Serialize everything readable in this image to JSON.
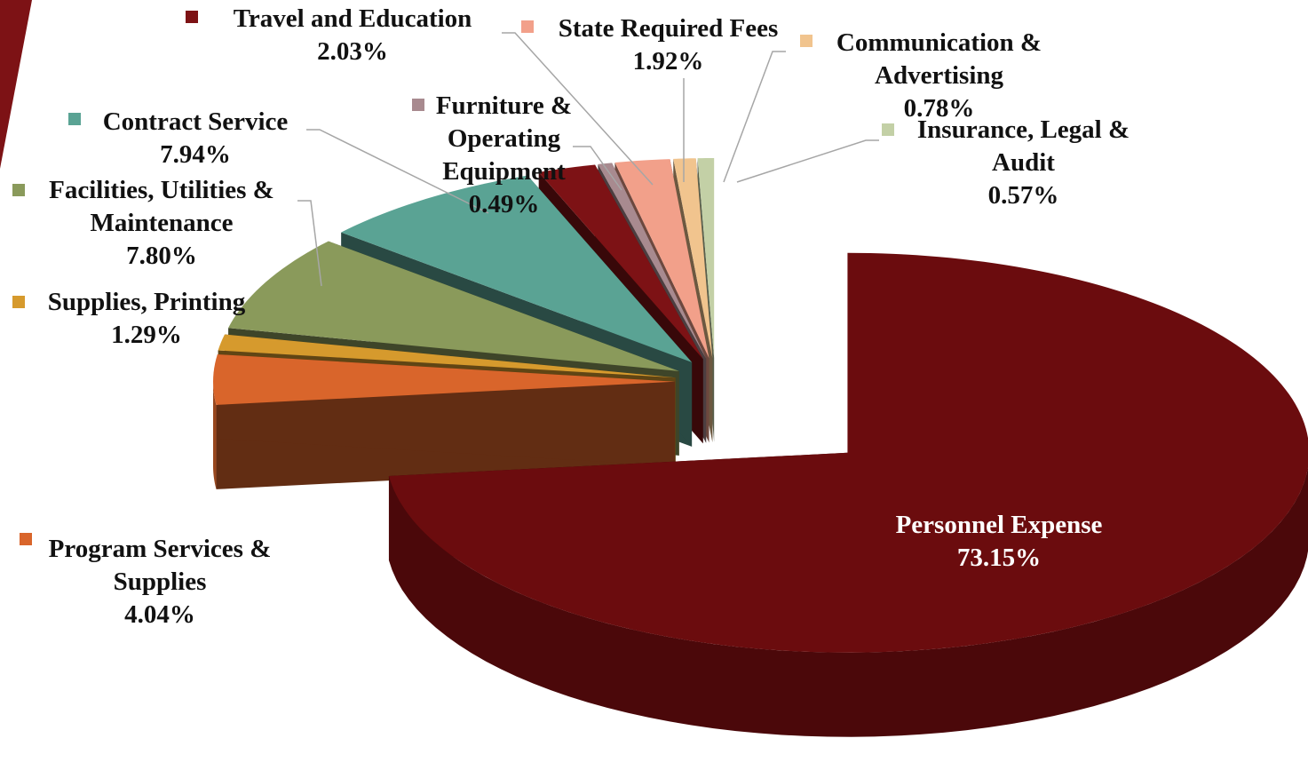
{
  "chart_data": {
    "type": "pie",
    "categories": [
      "Personnel Expense",
      "Program Services & Supplies",
      "Supplies, Printing",
      "Facilities, Utilities & Maintenance",
      "Contract Service",
      "Travel and Education",
      "Furniture & Operating Equipment",
      "State Required Fees",
      "Communication & Advertising",
      "Insurance, Legal & Audit"
    ],
    "values": [
      73.15,
      4.04,
      1.29,
      7.8,
      7.94,
      2.03,
      0.49,
      1.92,
      0.78,
      0.57
    ],
    "value_labels": [
      "73.15%",
      "4.04%",
      "1.29%",
      "7.80%",
      "7.94%",
      "2.03%",
      "0.49%",
      "1.92%",
      "0.78%",
      "0.57%"
    ],
    "colors": [
      "#6b0c0e",
      "#d9652b",
      "#d69a2d",
      "#8a9a5b",
      "#5aa394",
      "#7d1215",
      "#a88a8f",
      "#f2a08a",
      "#f1c48e",
      "#c3d0a6"
    ]
  }
}
